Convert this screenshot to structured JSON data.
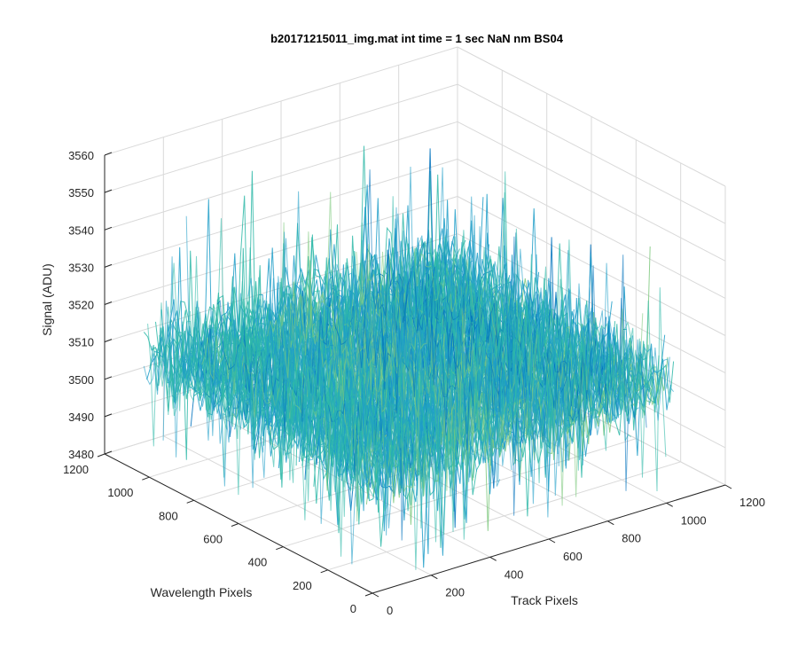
{
  "chart_data": {
    "type": "surface",
    "title": "b20171215011_img.mat int time = 1 sec  NaN nm BS04",
    "xlabel": "Track Pixels",
    "ylabel": "Wavelength Pixels",
    "zlabel": "Signal (ADU)",
    "xlim": [
      0,
      1200
    ],
    "ylim": [
      0,
      1200
    ],
    "zlim": [
      3480,
      3560
    ],
    "x_ticks": [
      "0",
      "200",
      "400",
      "600",
      "800",
      "1000",
      "1200"
    ],
    "y_ticks": [
      "0",
      "200",
      "400",
      "600",
      "800",
      "1000",
      "1200"
    ],
    "z_ticks": [
      "3480",
      "3490",
      "3500",
      "3510",
      "3520",
      "3530",
      "3540",
      "3550",
      "3560"
    ],
    "x_data_range": [
      0,
      1024
    ],
    "y_data_range": [
      0,
      1024
    ],
    "signal_mean": 3512,
    "signal_range": [
      3490,
      3555
    ],
    "grid": true,
    "colormap": [
      "#0072bd",
      "#1f9ec8",
      "#2fb9a8",
      "#7fc97f",
      "#d8c740",
      "#f9e13d"
    ]
  }
}
